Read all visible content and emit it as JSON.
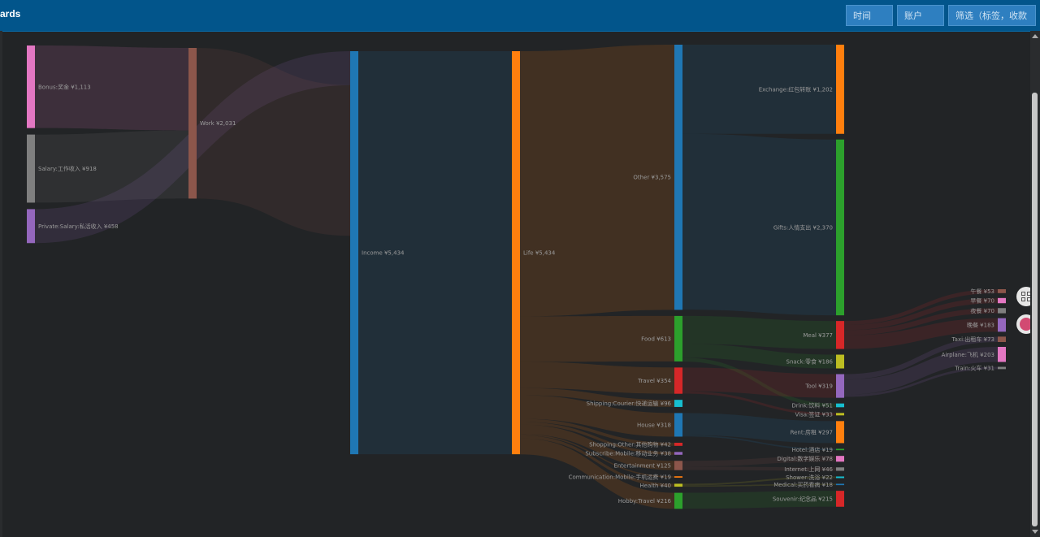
{
  "header": {
    "brand": "ards"
  },
  "filters": {
    "time": "时间",
    "account": "账户",
    "search": "筛选（标签，收款"
  },
  "icons": {
    "grid": "grid-add-icon",
    "user": "user-avatar-icon",
    "scroll_up": "chevron-up-icon",
    "scroll_down": "chevron-down-icon"
  },
  "chart_data": {
    "type": "sankey",
    "currency": "¥",
    "nodes": [
      {
        "id": "bonus",
        "label": "Bonus:奖金",
        "value": 1113,
        "color": "#e377c2",
        "column": 0
      },
      {
        "id": "salary",
        "label": "Salary:工作收入",
        "value": 918,
        "color": "#7f7f7f",
        "column": 0
      },
      {
        "id": "private",
        "label": "Private:Salary:私活收入",
        "value": 458,
        "color": "#9467bd",
        "column": 0
      },
      {
        "id": "work",
        "label": "Work",
        "value": 2031,
        "color": "#8c564b",
        "column": 1
      },
      {
        "id": "income",
        "label": "Income",
        "value": 5434,
        "color": "#1f77b4",
        "column": 2
      },
      {
        "id": "life",
        "label": "Life",
        "value": 5434,
        "color": "#ff7f0e",
        "column": 3
      },
      {
        "id": "other",
        "label": "Other",
        "value": 3575,
        "color": "#1f77b4",
        "column": 4
      },
      {
        "id": "food",
        "label": "Food",
        "value": 613,
        "color": "#2ca02c",
        "column": 4
      },
      {
        "id": "travel",
        "label": "Travel",
        "value": 354,
        "color": "#d62728",
        "column": 4
      },
      {
        "id": "courier",
        "label": "Shipping:Courier:快递运输",
        "value": 96,
        "color": "#17becf",
        "column": 4
      },
      {
        "id": "house",
        "label": "House",
        "value": 318,
        "color": "#1f77b4",
        "column": 4
      },
      {
        "id": "shopother",
        "label": "Shopping:Other:其他购物",
        "value": 42,
        "color": "#d62728",
        "column": 4
      },
      {
        "id": "subscribe",
        "label": "Subscribe:Mobile:移动业务",
        "value": 38,
        "color": "#9467bd",
        "column": 4
      },
      {
        "id": "entertain",
        "label": "Entertainment",
        "value": 125,
        "color": "#8c564b",
        "column": 4
      },
      {
        "id": "commmobile",
        "label": "Communication:Mobile:手机运费",
        "value": 19,
        "color": "#ff7f0e",
        "column": 4
      },
      {
        "id": "health",
        "label": "Health",
        "value": 40,
        "color": "#bcbd22",
        "column": 4
      },
      {
        "id": "hobby",
        "label": "Hobby:Travel",
        "value": 216,
        "color": "#2ca02c",
        "column": 4
      },
      {
        "id": "exchange",
        "label": "Exchange:红包转账",
        "value": 1202,
        "color": "#ff7f0e",
        "column": 5
      },
      {
        "id": "gifts",
        "label": "Gifts:人情支出",
        "value": 2370,
        "color": "#2ca02c",
        "column": 5
      },
      {
        "id": "meal",
        "label": "Meal",
        "value": 377,
        "color": "#d62728",
        "column": 5
      },
      {
        "id": "snack",
        "label": "Snack:零食",
        "value": 186,
        "color": "#bcbd22",
        "column": 5
      },
      {
        "id": "tool",
        "label": "Tool",
        "value": 319,
        "color": "#9467bd",
        "column": 5
      },
      {
        "id": "drink",
        "label": "Drink:饮料",
        "value": 51,
        "color": "#17becf",
        "column": 5
      },
      {
        "id": "visa",
        "label": "Visa:签证",
        "value": 33,
        "color": "#bcbd22",
        "column": 5
      },
      {
        "id": "rent",
        "label": "Rent:房租",
        "value": 297,
        "color": "#ff7f0e",
        "column": 5
      },
      {
        "id": "hotel",
        "label": "Hotel:酒店",
        "value": 19,
        "color": "#2ca02c",
        "column": 5
      },
      {
        "id": "digital",
        "label": "Digital:数字娱乐",
        "value": 78,
        "color": "#e377c2",
        "column": 5
      },
      {
        "id": "internet",
        "label": "Internet:上网",
        "value": 46,
        "color": "#7f7f7f",
        "column": 5
      },
      {
        "id": "shower",
        "label": "Shower:洗浴",
        "value": 22,
        "color": "#17becf",
        "column": 5
      },
      {
        "id": "medical",
        "label": "Medical:买药看病",
        "value": 18,
        "color": "#1f77b4",
        "column": 5
      },
      {
        "id": "souvenir",
        "label": "Souvenir:纪念品",
        "value": 215,
        "color": "#d62728",
        "column": 5
      },
      {
        "id": "lunch",
        "label": "午餐",
        "value": 53,
        "color": "#8c564b",
        "column": 6
      },
      {
        "id": "breakfast",
        "label": "早餐",
        "value": 70,
        "color": "#e377c2",
        "column": 6
      },
      {
        "id": "snackmeal",
        "label": "夜餐",
        "value": 70,
        "color": "#7f7f7f",
        "column": 6
      },
      {
        "id": "dinner",
        "label": "晚餐",
        "value": 183,
        "color": "#9467bd",
        "column": 6
      },
      {
        "id": "taxi",
        "label": "Taxi:出租车",
        "value": 73,
        "color": "#8c564b",
        "column": 6
      },
      {
        "id": "airplane",
        "label": "Airplane:飞机",
        "value": 203,
        "color": "#e377c2",
        "column": 6
      },
      {
        "id": "train",
        "label": "Train:火车",
        "value": 31,
        "color": "#7f7f7f",
        "column": 6
      }
    ],
    "links": [
      {
        "source": "bonus",
        "target": "work",
        "value": 1113
      },
      {
        "source": "salary",
        "target": "work",
        "value": 918
      },
      {
        "source": "private",
        "target": "income",
        "value": 458
      },
      {
        "source": "work",
        "target": "income",
        "value": 2031
      },
      {
        "source": "income",
        "target": "life",
        "value": 5434
      },
      {
        "source": "life",
        "target": "other",
        "value": 3575
      },
      {
        "source": "life",
        "target": "food",
        "value": 613
      },
      {
        "source": "life",
        "target": "travel",
        "value": 354
      },
      {
        "source": "life",
        "target": "courier",
        "value": 96
      },
      {
        "source": "life",
        "target": "house",
        "value": 318
      },
      {
        "source": "life",
        "target": "shopother",
        "value": 42
      },
      {
        "source": "life",
        "target": "subscribe",
        "value": 38
      },
      {
        "source": "life",
        "target": "entertain",
        "value": 125
      },
      {
        "source": "life",
        "target": "commmobile",
        "value": 19
      },
      {
        "source": "life",
        "target": "health",
        "value": 40
      },
      {
        "source": "life",
        "target": "hobby",
        "value": 216
      },
      {
        "source": "other",
        "target": "exchange",
        "value": 1202
      },
      {
        "source": "other",
        "target": "gifts",
        "value": 2370
      },
      {
        "source": "food",
        "target": "meal",
        "value": 377
      },
      {
        "source": "food",
        "target": "snack",
        "value": 186
      },
      {
        "source": "food",
        "target": "drink",
        "value": 51
      },
      {
        "source": "travel",
        "target": "tool",
        "value": 319
      },
      {
        "source": "travel",
        "target": "visa",
        "value": 33
      },
      {
        "source": "house",
        "target": "rent",
        "value": 297
      },
      {
        "source": "house",
        "target": "hotel",
        "value": 19
      },
      {
        "source": "entertain",
        "target": "digital",
        "value": 78
      },
      {
        "source": "entertain",
        "target": "internet",
        "value": 46
      },
      {
        "source": "health",
        "target": "shower",
        "value": 22
      },
      {
        "source": "health",
        "target": "medical",
        "value": 18
      },
      {
        "source": "hobby",
        "target": "souvenir",
        "value": 215
      },
      {
        "source": "meal",
        "target": "lunch",
        "value": 53
      },
      {
        "source": "meal",
        "target": "breakfast",
        "value": 70
      },
      {
        "source": "meal",
        "target": "snackmeal",
        "value": 70
      },
      {
        "source": "meal",
        "target": "dinner",
        "value": 183
      },
      {
        "source": "tool",
        "target": "taxi",
        "value": 73
      },
      {
        "source": "tool",
        "target": "airplane",
        "value": 203
      },
      {
        "source": "tool",
        "target": "train",
        "value": 31
      }
    ]
  }
}
